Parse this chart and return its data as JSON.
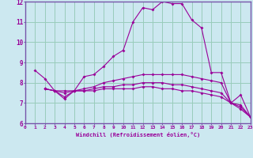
{
  "xlabel": "Windchill (Refroidissement éolien,°C)",
  "bg_color": "#cce8f0",
  "line_color": "#990099",
  "grid_color": "#99ccbb",
  "spine_color": "#7755aa",
  "xlim": [
    0,
    23
  ],
  "ylim": [
    6,
    12
  ],
  "xticks": [
    0,
    1,
    2,
    3,
    4,
    5,
    6,
    7,
    8,
    9,
    10,
    11,
    12,
    13,
    14,
    15,
    16,
    17,
    18,
    19,
    20,
    21,
    22,
    23
  ],
  "yticks": [
    6,
    7,
    8,
    9,
    10,
    11,
    12
  ],
  "lines": [
    {
      "x": [
        1,
        2,
        3,
        4,
        5,
        6,
        7,
        8,
        9,
        10,
        11,
        12,
        13,
        14,
        15,
        16,
        17,
        18,
        19,
        20,
        21,
        22,
        23
      ],
      "y": [
        8.6,
        8.2,
        7.6,
        7.2,
        7.6,
        8.3,
        8.4,
        8.8,
        9.3,
        9.6,
        11.0,
        11.7,
        11.6,
        12.0,
        11.9,
        11.9,
        11.1,
        10.7,
        8.5,
        8.5,
        7.0,
        7.4,
        6.3
      ]
    },
    {
      "x": [
        2,
        3,
        4,
        5,
        6,
        7,
        8,
        9,
        10,
        11,
        12,
        13,
        14,
        15,
        16,
        17,
        18,
        19,
        20,
        21,
        22,
        23
      ],
      "y": [
        7.7,
        7.6,
        7.6,
        7.6,
        7.7,
        7.8,
        8.0,
        8.1,
        8.2,
        8.3,
        8.4,
        8.4,
        8.4,
        8.4,
        8.4,
        8.3,
        8.2,
        8.1,
        8.0,
        7.0,
        6.9,
        6.3
      ]
    },
    {
      "x": [
        2,
        3,
        4,
        5,
        6,
        7,
        8,
        9,
        10,
        11,
        12,
        13,
        14,
        15,
        16,
        17,
        18,
        19,
        20,
        21,
        22,
        23
      ],
      "y": [
        7.7,
        7.6,
        7.3,
        7.6,
        7.6,
        7.7,
        7.8,
        7.8,
        7.9,
        7.9,
        8.0,
        8.0,
        8.0,
        7.9,
        7.9,
        7.8,
        7.7,
        7.6,
        7.5,
        7.0,
        6.8,
        6.3
      ]
    },
    {
      "x": [
        2,
        3,
        4,
        5,
        6,
        7,
        8,
        9,
        10,
        11,
        12,
        13,
        14,
        15,
        16,
        17,
        18,
        19,
        20,
        21,
        22,
        23
      ],
      "y": [
        7.7,
        7.6,
        7.5,
        7.6,
        7.6,
        7.6,
        7.7,
        7.7,
        7.7,
        7.7,
        7.8,
        7.8,
        7.7,
        7.7,
        7.6,
        7.6,
        7.5,
        7.4,
        7.3,
        7.0,
        6.7,
        6.3
      ]
    }
  ]
}
